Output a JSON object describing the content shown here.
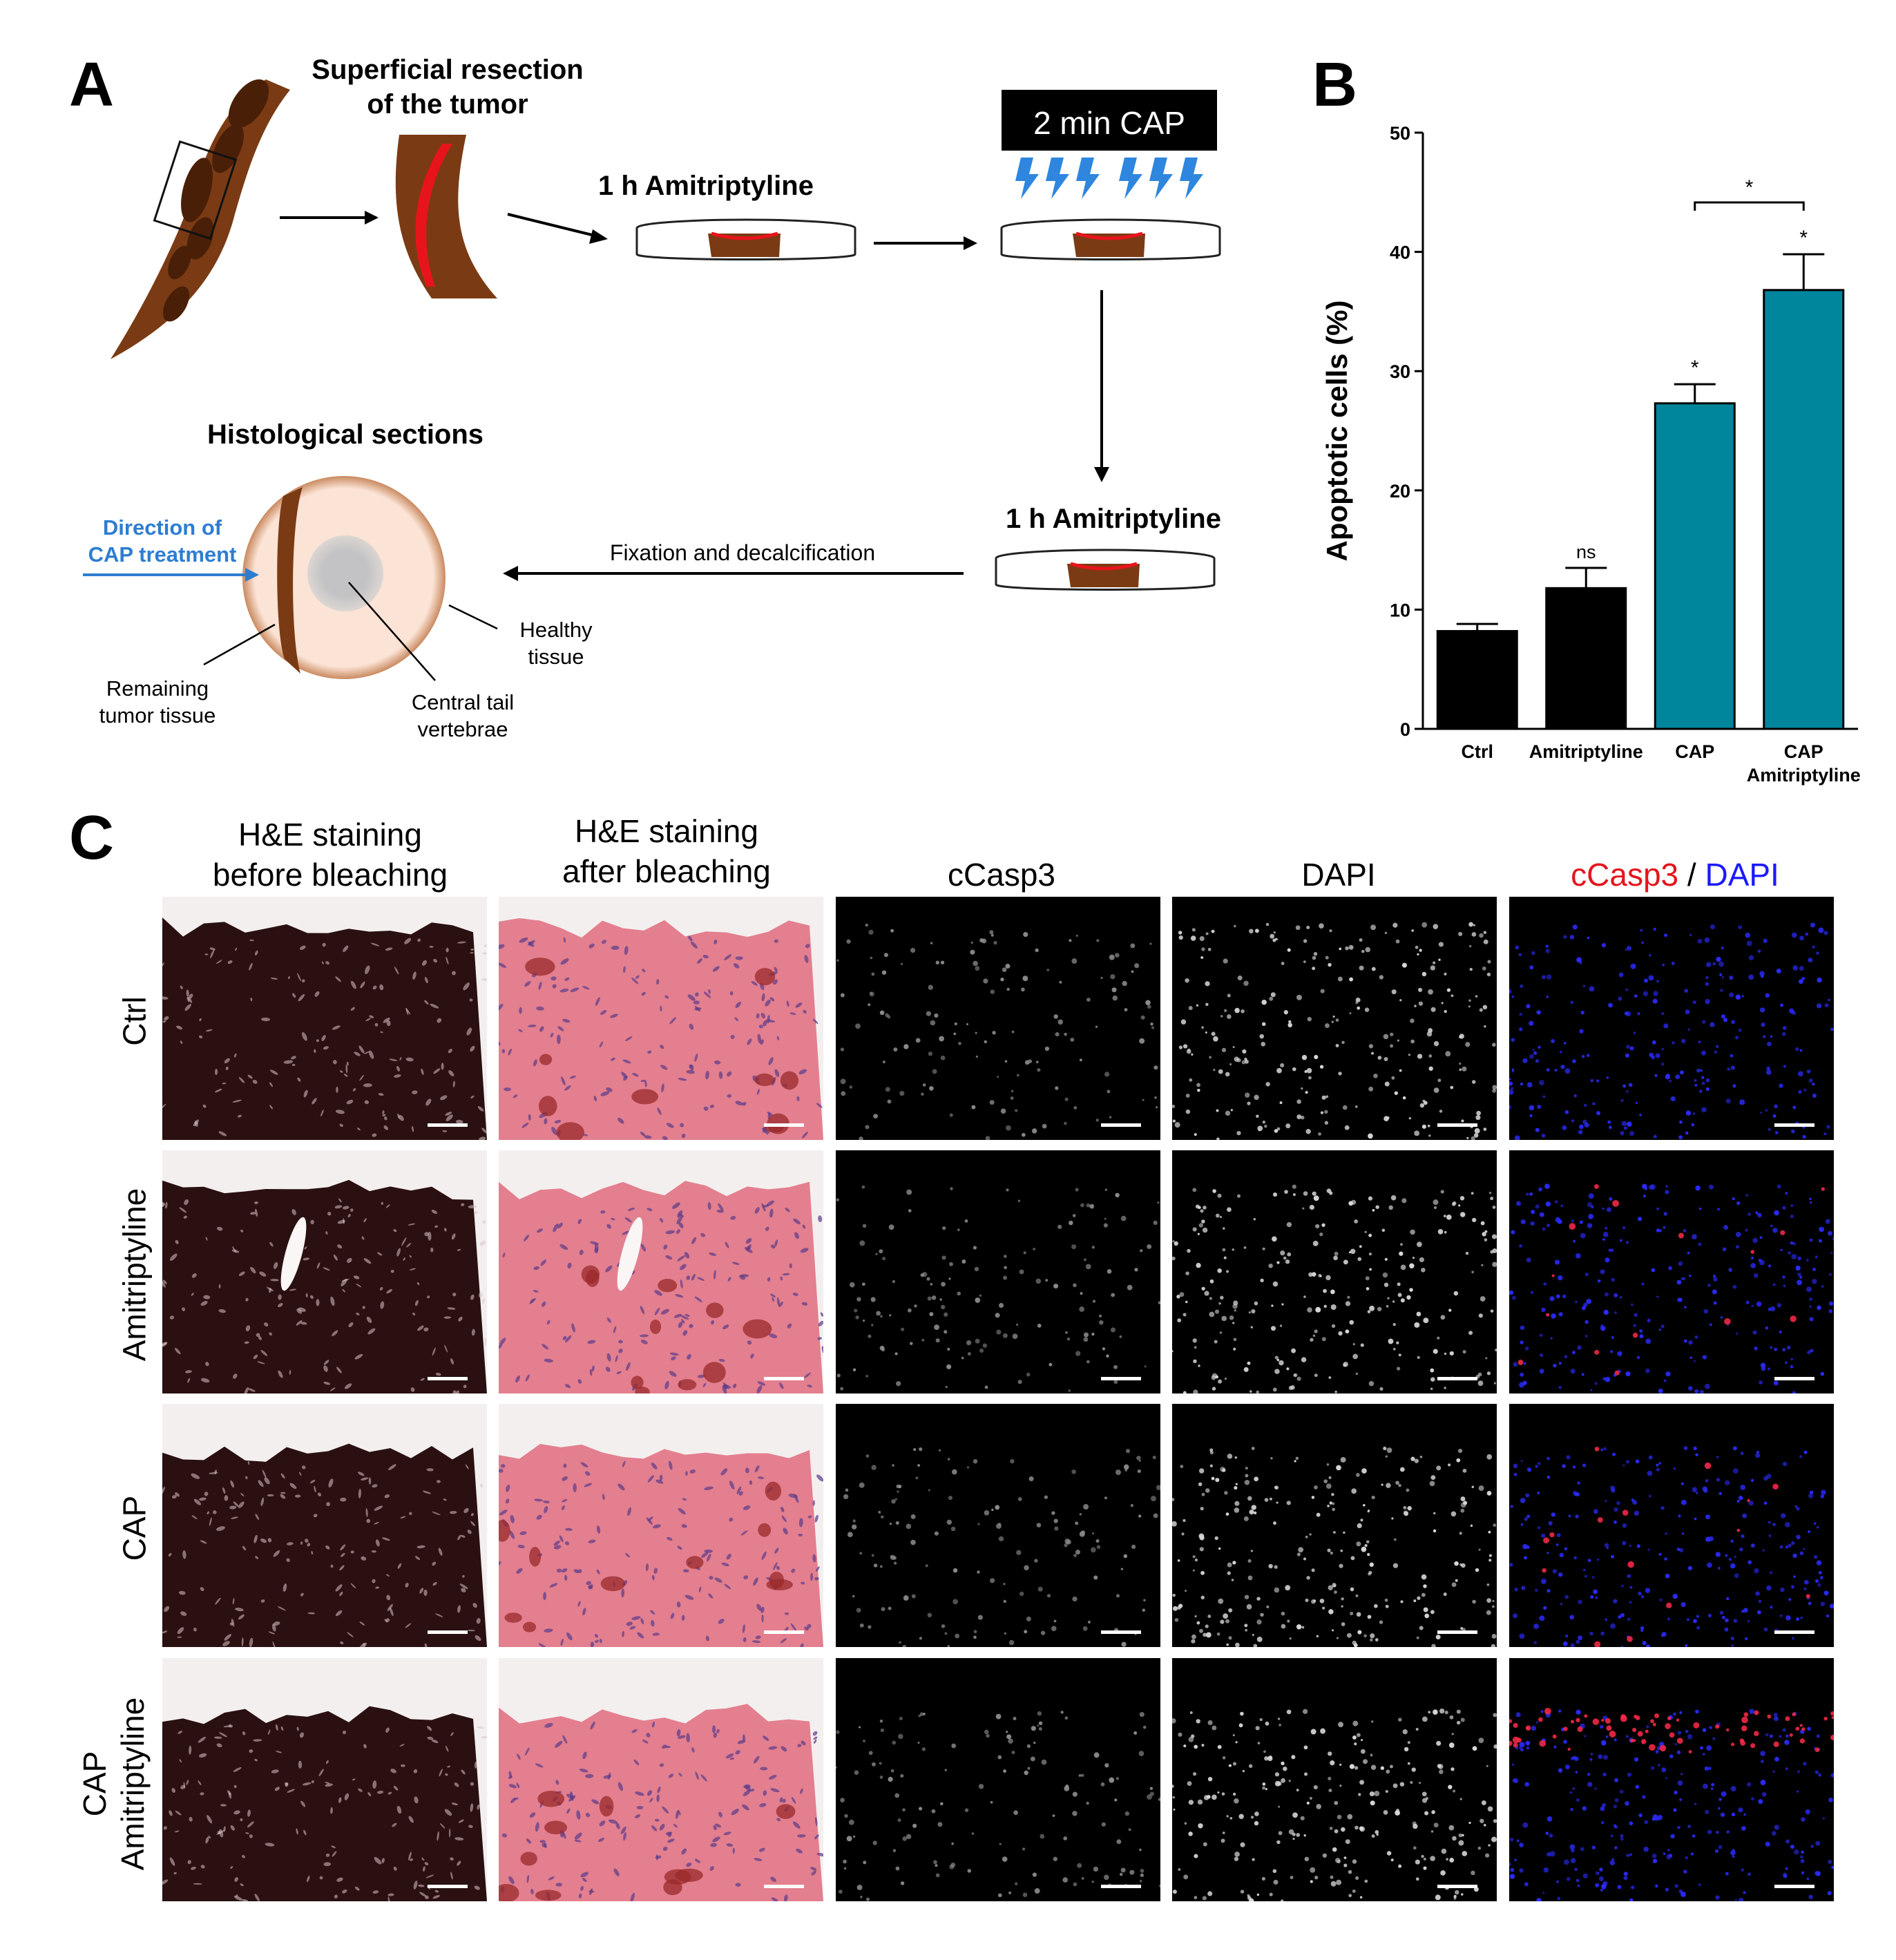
{
  "panels": {
    "a": "A",
    "b": "B",
    "c": "C"
  },
  "panel_a": {
    "resection_title_line1": "Superficial resection",
    "resection_title_line2": "of the tumor",
    "amitriptyline_1": "1 h Amitriptyline",
    "cap_box": "2 min CAP",
    "amitriptyline_2": "1 h Amitriptyline",
    "fixation": "Fixation  and  decalcification",
    "histo_title": "Histological sections",
    "direction_line1": "Direction  of",
    "direction_line2": "CAP treatment",
    "remaining_line1": "Remaining",
    "remaining_line2": "tumor tissue",
    "central_line1": "Central  tail",
    "central_line2": "vertebrae",
    "healthy_line1": "Healthy",
    "healthy_line2": "tissue",
    "colors": {
      "tumor": "#7a3b14",
      "wound": "#e8141c",
      "tissue": "#fbe3d5",
      "vertebra": "#c7c7c9",
      "cap_bolt": "#2e86de",
      "direction": "#2e7dd1"
    }
  },
  "chart_data": {
    "type": "bar",
    "categories": [
      "Ctrl",
      "Amitriptyline",
      "CAP",
      "CAP\nAmitriptyline"
    ],
    "category_lines": [
      [
        "Ctrl"
      ],
      [
        "Amitriptyline"
      ],
      [
        "CAP"
      ],
      [
        "CAP",
        "Amitriptyline"
      ]
    ],
    "values": [
      8.2,
      11.8,
      27.3,
      36.8
    ],
    "errors": [
      0.6,
      1.7,
      1.6,
      3.0
    ],
    "bar_colors": [
      "#000000",
      "#000000",
      "#00869c",
      "#00869c"
    ],
    "significance": [
      "",
      "ns",
      "*",
      "*"
    ],
    "bracket": {
      "from": 2,
      "to": 3,
      "label": "*"
    },
    "ylabel": "Apoptotic cells (%)",
    "ylim": [
      0,
      50
    ],
    "yticks": [
      0,
      10,
      20,
      30,
      40,
      50
    ],
    "grid": false
  },
  "panel_c": {
    "columns": [
      {
        "line1": "H&E staining",
        "line2": "before bleaching"
      },
      {
        "line1": "H&E staining",
        "line2": "after bleaching"
      },
      {
        "line1": "cCasp3",
        "line2": ""
      },
      {
        "line1": "DAPI",
        "line2": ""
      },
      {
        "merge_red": "cCasp3",
        "merge_sep": " / ",
        "merge_blue": "DAPI"
      }
    ],
    "rows": [
      {
        "line1": "Ctrl",
        "line2": ""
      },
      {
        "line1": "Amitriptyline",
        "line2": ""
      },
      {
        "line1": "CAP",
        "line2": ""
      },
      {
        "line1": "CAP",
        "line2": "Amitriptyline"
      }
    ],
    "colors": {
      "he_before": "#2a1010",
      "he_after": "#e37f8e",
      "fluor_bg": "#000000",
      "dapi_blue": "#2b2bff",
      "casp_red": "#ff2a4a",
      "merge_red_text": "#e5141c",
      "merge_blue_text": "#1a1aff"
    }
  }
}
